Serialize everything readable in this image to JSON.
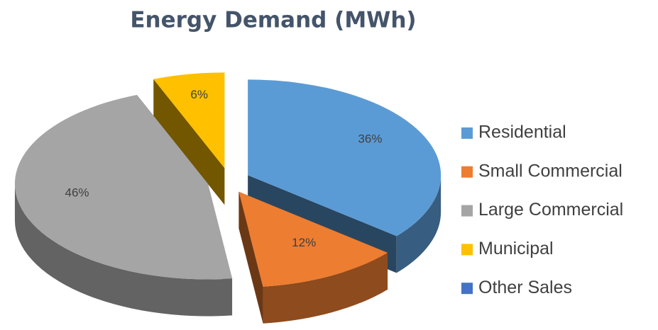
{
  "chart_data": {
    "type": "pie3d",
    "title": "Energy Demand (MWh)",
    "categories": [
      "Residential",
      "Small Commercial",
      "Large Commercial",
      "Municipal",
      "Other Sales"
    ],
    "values": [
      36,
      12,
      46,
      6,
      0
    ],
    "value_labels": [
      "36%",
      "12%",
      "46%",
      "6%",
      null
    ],
    "colors": [
      "#5b9bd5",
      "#ed7d31",
      "#a5a5a5",
      "#ffc000",
      "#4472c4"
    ],
    "legend": "right",
    "exploded": true
  }
}
